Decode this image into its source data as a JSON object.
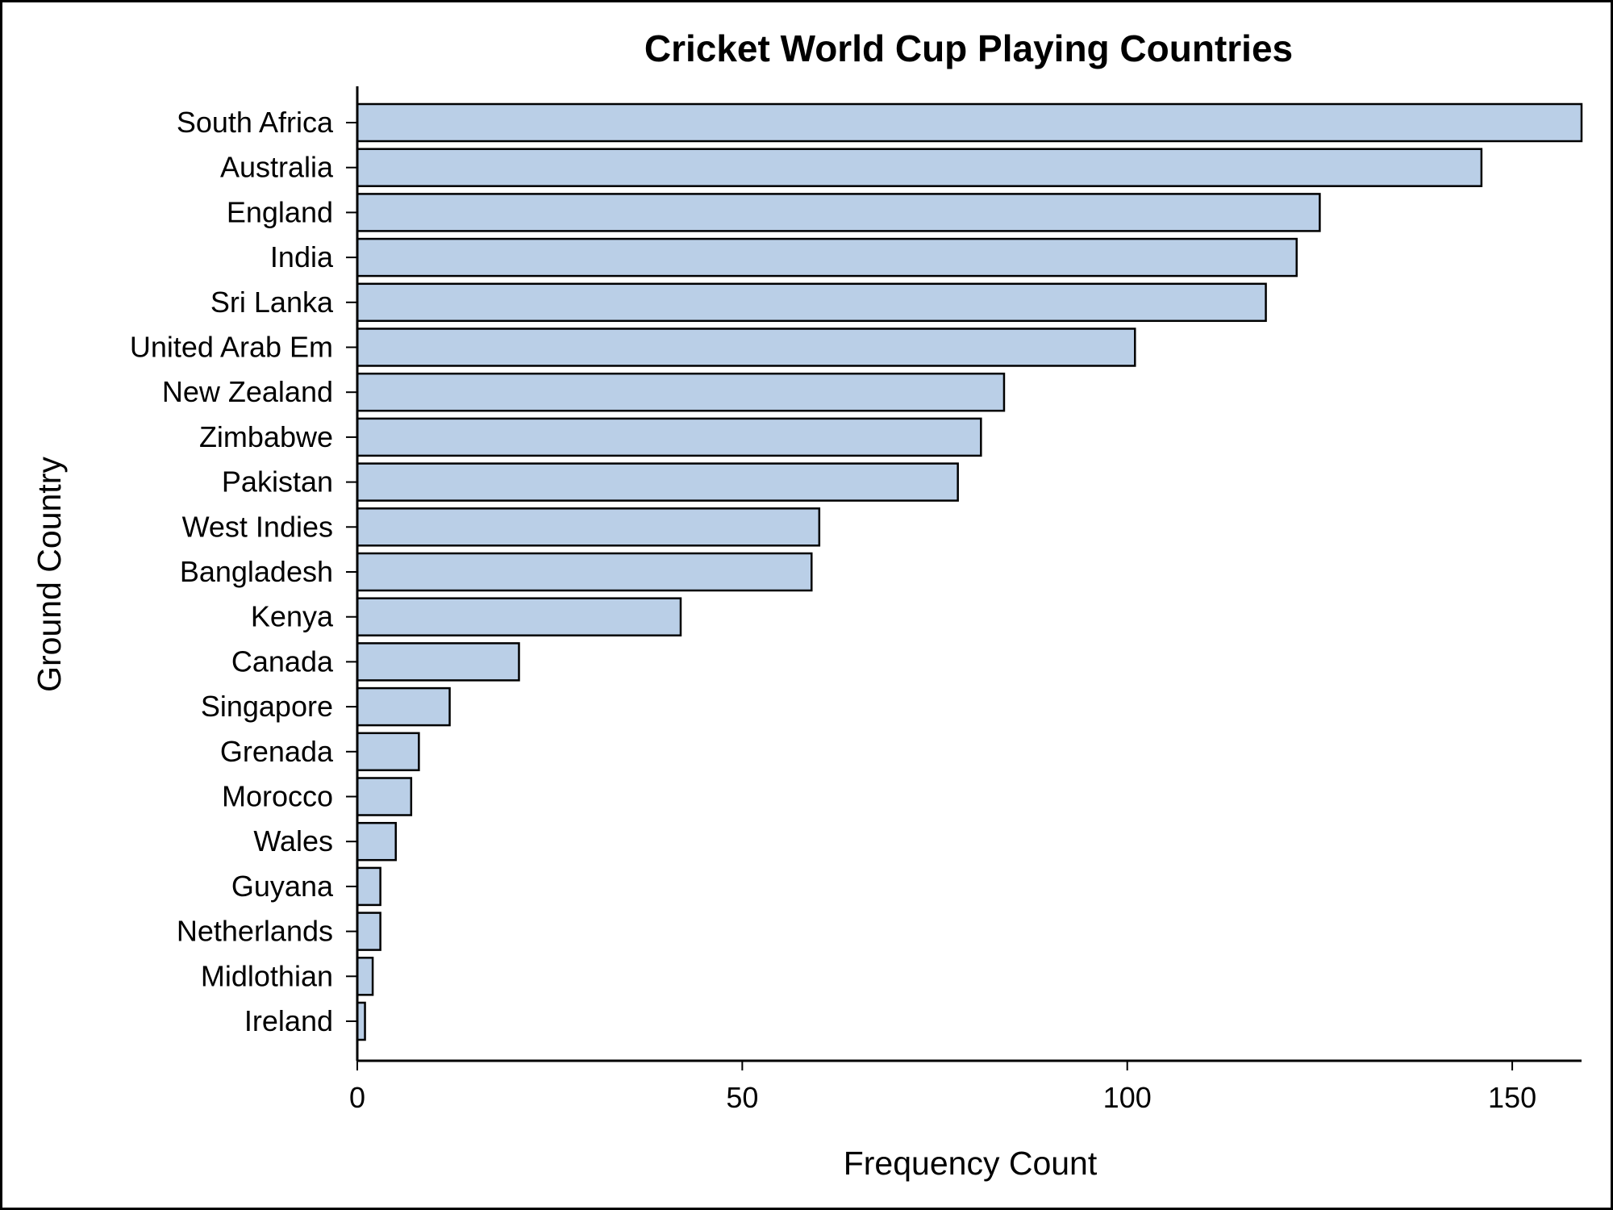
{
  "chart_data": {
    "type": "bar",
    "orientation": "horizontal",
    "title": "Cricket World Cup Playing Countries",
    "xlabel": "Frequency Count",
    "ylabel": "Ground Country",
    "categories": [
      "South Africa",
      "Australia",
      "England",
      "India",
      "Sri Lanka",
      "United Arab Em",
      "New Zealand",
      "Zimbabwe",
      "Pakistan",
      "West Indies",
      "Bangladesh",
      "Kenya",
      "Canada",
      "Singapore",
      "Grenada",
      "Morocco",
      "Wales",
      "Guyana",
      "Netherlands",
      "Midlothian",
      "Ireland"
    ],
    "values": [
      159,
      146,
      125,
      122,
      118,
      101,
      84,
      81,
      78,
      60,
      59,
      42,
      21,
      12,
      8,
      7,
      5,
      3,
      3,
      2,
      1
    ],
    "xlim": [
      0,
      159
    ],
    "xticks": [
      0,
      50,
      100,
      150
    ],
    "grid": false,
    "legend": "none",
    "colors": {
      "bar_fill": "#bacfe7",
      "bar_edge": "#000000"
    }
  }
}
